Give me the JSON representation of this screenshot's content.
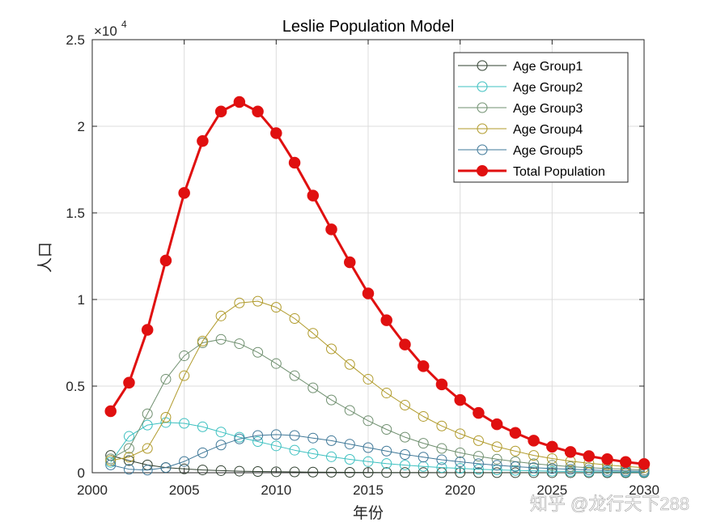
{
  "chart_data": {
    "type": "line",
    "title": "Leslie Population Model",
    "xlabel": "年份",
    "ylabel": "人口",
    "exponent_label": "×10",
    "exponent_power": "4",
    "xlim": [
      2000,
      2030
    ],
    "ylim": [
      0,
      25000
    ],
    "x_ticks": [
      2000,
      2005,
      2010,
      2015,
      2020,
      2025,
      2030
    ],
    "y_ticks": [
      0,
      5000,
      10000,
      15000,
      20000,
      25000
    ],
    "y_tick_labels": [
      "0",
      "0.5",
      "1",
      "1.5",
      "2",
      "2.5"
    ],
    "grid": true,
    "legend_position": "top-right",
    "x": [
      2001,
      2002,
      2003,
      2004,
      2005,
      2006,
      2007,
      2008,
      2009,
      2010,
      2011,
      2012,
      2013,
      2014,
      2015,
      2016,
      2017,
      2018,
      2019,
      2020,
      2021,
      2022,
      2023,
      2024,
      2025,
      2026,
      2027,
      2028,
      2029,
      2030
    ],
    "series": [
      {
        "name": "Age Group1",
        "color": "#2f3f2f",
        "marker": "open-circle",
        "values": [
          1000,
          700,
          450,
          300,
          220,
          160,
          120,
          90,
          70,
          55,
          45,
          35,
          28,
          22,
          18,
          14,
          11,
          9,
          7,
          6,
          5,
          4,
          3,
          3,
          2,
          2,
          2,
          1,
          1,
          1
        ]
      },
      {
        "name": "Age Group2",
        "color": "#3cc0c0",
        "marker": "open-circle",
        "values": [
          600,
          2100,
          2750,
          2900,
          2850,
          2650,
          2350,
          2050,
          1800,
          1550,
          1300,
          1100,
          920,
          770,
          640,
          530,
          440,
          360,
          300,
          250,
          200,
          165,
          135,
          110,
          90,
          75,
          60,
          50,
          40,
          35
        ]
      },
      {
        "name": "Age Group3",
        "color": "#6f8f6f",
        "marker": "open-circle",
        "values": [
          800,
          1400,
          3400,
          5400,
          6750,
          7500,
          7700,
          7450,
          6950,
          6300,
          5600,
          4900,
          4200,
          3600,
          3000,
          2500,
          2050,
          1700,
          1400,
          1150,
          950,
          780,
          640,
          520,
          430,
          350,
          290,
          240,
          200,
          160
        ]
      },
      {
        "name": "Age Group4",
        "color": "#b09a2a",
        "marker": "open-circle",
        "values": [
          700,
          900,
          1400,
          3200,
          5600,
          7600,
          9050,
          9800,
          9900,
          9550,
          8900,
          8050,
          7150,
          6250,
          5400,
          4600,
          3900,
          3250,
          2700,
          2250,
          1850,
          1500,
          1250,
          1000,
          820,
          670,
          550,
          450,
          360,
          290
        ]
      },
      {
        "name": "Age Group5",
        "color": "#3f7898",
        "marker": "open-circle",
        "values": [
          450,
          200,
          150,
          300,
          650,
          1150,
          1600,
          1950,
          2150,
          2200,
          2150,
          2000,
          1850,
          1650,
          1450,
          1250,
          1050,
          900,
          750,
          630,
          520,
          430,
          350,
          290,
          240,
          195,
          160,
          130,
          105,
          85
        ]
      },
      {
        "name": "Total Population",
        "color": "#e01010",
        "marker": "filled-circle",
        "values": [
          3550,
          5200,
          8250,
          12250,
          16150,
          19150,
          20850,
          21400,
          20850,
          19600,
          17900,
          16000,
          14050,
          12150,
          10350,
          8800,
          7400,
          6150,
          5100,
          4200,
          3450,
          2800,
          2300,
          1850,
          1500,
          1200,
          960,
          780,
          620,
          500
        ]
      }
    ]
  },
  "watermark": "知乎 @龙行天下288"
}
